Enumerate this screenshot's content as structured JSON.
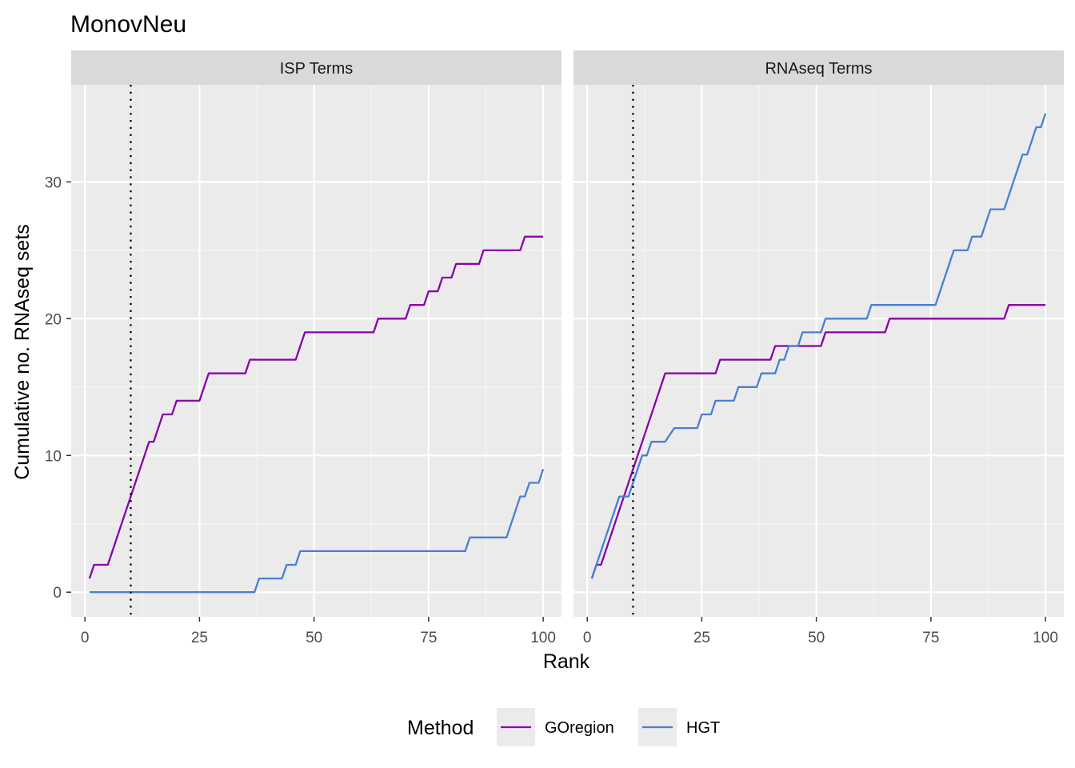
{
  "chart_data": {
    "type": "line",
    "title": "MonovNeu",
    "xlabel": "Rank",
    "ylabel": "Cumulative no. RNAseq sets",
    "xlim": [
      -3,
      104
    ],
    "ylim": [
      -1.8,
      37.1
    ],
    "x_ticks": [
      0,
      25,
      50,
      75,
      100
    ],
    "y_ticks": [
      0,
      10,
      20,
      30
    ],
    "reference_line": {
      "x": 10,
      "style": "dotted"
    },
    "legend": {
      "title": "Method",
      "position": "bottom"
    },
    "series_styles": [
      {
        "name": "GOregion",
        "color": "#8B00A8"
      },
      {
        "name": "HGT",
        "color": "#4A7FD0"
      }
    ],
    "panels": [
      {
        "label": "ISP Terms",
        "series": [
          {
            "name": "GOregion",
            "points": [
              [
                1,
                1
              ],
              [
                2,
                2
              ],
              [
                5,
                2
              ],
              [
                14,
                11
              ],
              [
                15,
                11
              ],
              [
                17,
                13
              ],
              [
                19,
                13
              ],
              [
                20,
                14
              ],
              [
                25,
                14
              ],
              [
                27,
                16
              ],
              [
                35,
                16
              ],
              [
                36,
                17
              ],
              [
                46,
                17
              ],
              [
                48,
                19
              ],
              [
                63,
                19
              ],
              [
                64,
                20
              ],
              [
                70,
                20
              ],
              [
                71,
                21
              ],
              [
                74,
                21
              ],
              [
                75,
                22
              ],
              [
                77,
                22
              ],
              [
                78,
                23
              ],
              [
                80,
                23
              ],
              [
                81,
                24
              ],
              [
                86,
                24
              ],
              [
                87,
                25
              ],
              [
                95,
                25
              ],
              [
                96,
                26
              ],
              [
                100,
                26
              ]
            ]
          },
          {
            "name": "HGT",
            "points": [
              [
                1,
                0
              ],
              [
                37,
                0
              ],
              [
                38,
                1
              ],
              [
                43,
                1
              ],
              [
                44,
                2
              ],
              [
                46,
                2
              ],
              [
                47,
                3
              ],
              [
                83,
                3
              ],
              [
                84,
                4
              ],
              [
                92,
                4
              ],
              [
                95,
                7
              ],
              [
                96,
                7
              ],
              [
                97,
                8
              ],
              [
                99,
                8
              ],
              [
                100,
                9
              ]
            ]
          }
        ]
      },
      {
        "label": "RNAseq Terms",
        "series": [
          {
            "name": "GOregion",
            "points": [
              [
                1,
                1
              ],
              [
                2,
                2
              ],
              [
                3,
                2
              ],
              [
                17,
                16
              ],
              [
                28,
                16
              ],
              [
                29,
                17
              ],
              [
                40,
                17
              ],
              [
                41,
                18
              ],
              [
                51,
                18
              ],
              [
                52,
                19
              ],
              [
                65,
                19
              ],
              [
                66,
                20
              ],
              [
                91,
                20
              ],
              [
                92,
                21
              ],
              [
                100,
                21
              ]
            ]
          },
          {
            "name": "HGT",
            "points": [
              [
                1,
                1
              ],
              [
                7,
                7
              ],
              [
                9,
                7
              ],
              [
                12,
                10
              ],
              [
                13,
                10
              ],
              [
                14,
                11
              ],
              [
                17,
                11
              ],
              [
                19,
                12
              ],
              [
                24,
                12
              ],
              [
                25,
                13
              ],
              [
                27,
                13
              ],
              [
                28,
                14
              ],
              [
                32,
                14
              ],
              [
                33,
                15
              ],
              [
                37,
                15
              ],
              [
                38,
                16
              ],
              [
                41,
                16
              ],
              [
                42,
                17
              ],
              [
                43,
                17
              ],
              [
                44,
                18
              ],
              [
                46,
                18
              ],
              [
                47,
                19
              ],
              [
                51,
                19
              ],
              [
                52,
                20
              ],
              [
                61,
                20
              ],
              [
                62,
                21
              ],
              [
                76,
                21
              ],
              [
                80,
                25
              ],
              [
                83,
                25
              ],
              [
                84,
                26
              ],
              [
                86,
                26
              ],
              [
                88,
                28
              ],
              [
                91,
                28
              ],
              [
                95,
                32
              ],
              [
                96,
                32
              ],
              [
                98,
                34
              ],
              [
                99,
                34
              ],
              [
                100,
                35
              ]
            ]
          }
        ]
      }
    ]
  }
}
